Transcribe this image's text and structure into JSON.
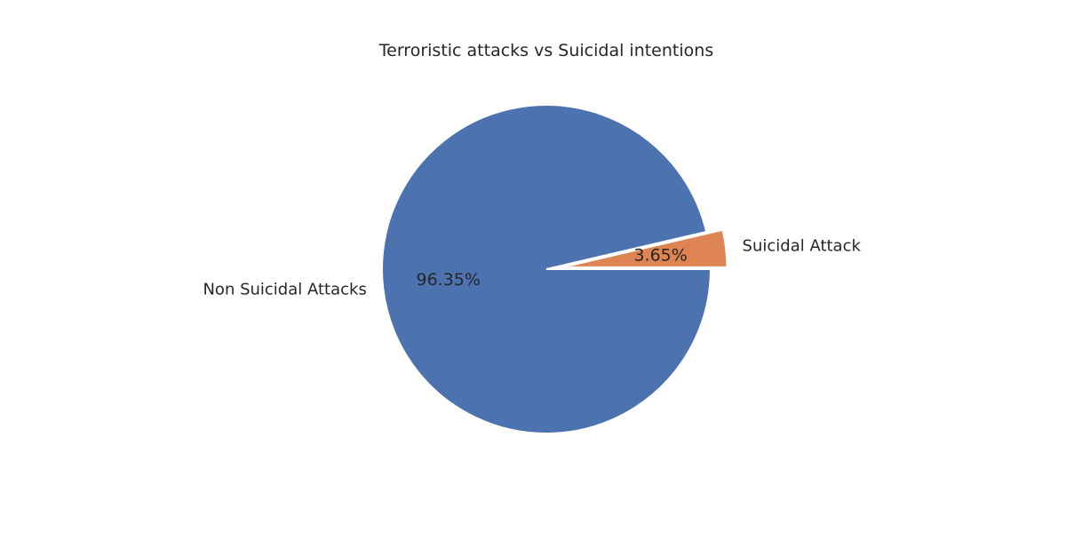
{
  "chart_data": {
    "type": "pie",
    "title": "Terroristic attacks vs Suicidal intentions",
    "labels": [
      "Suicidal Attack",
      "Non Suicidal Attacks"
    ],
    "values": [
      3.65,
      96.35
    ],
    "percent_labels": [
      "3.65%",
      "96.35%"
    ],
    "colors": [
      "#dd8452",
      "#4c72b0"
    ],
    "explode": [
      0.1,
      0
    ],
    "start_angle_deg": 0,
    "direction": "counterclockwise"
  }
}
